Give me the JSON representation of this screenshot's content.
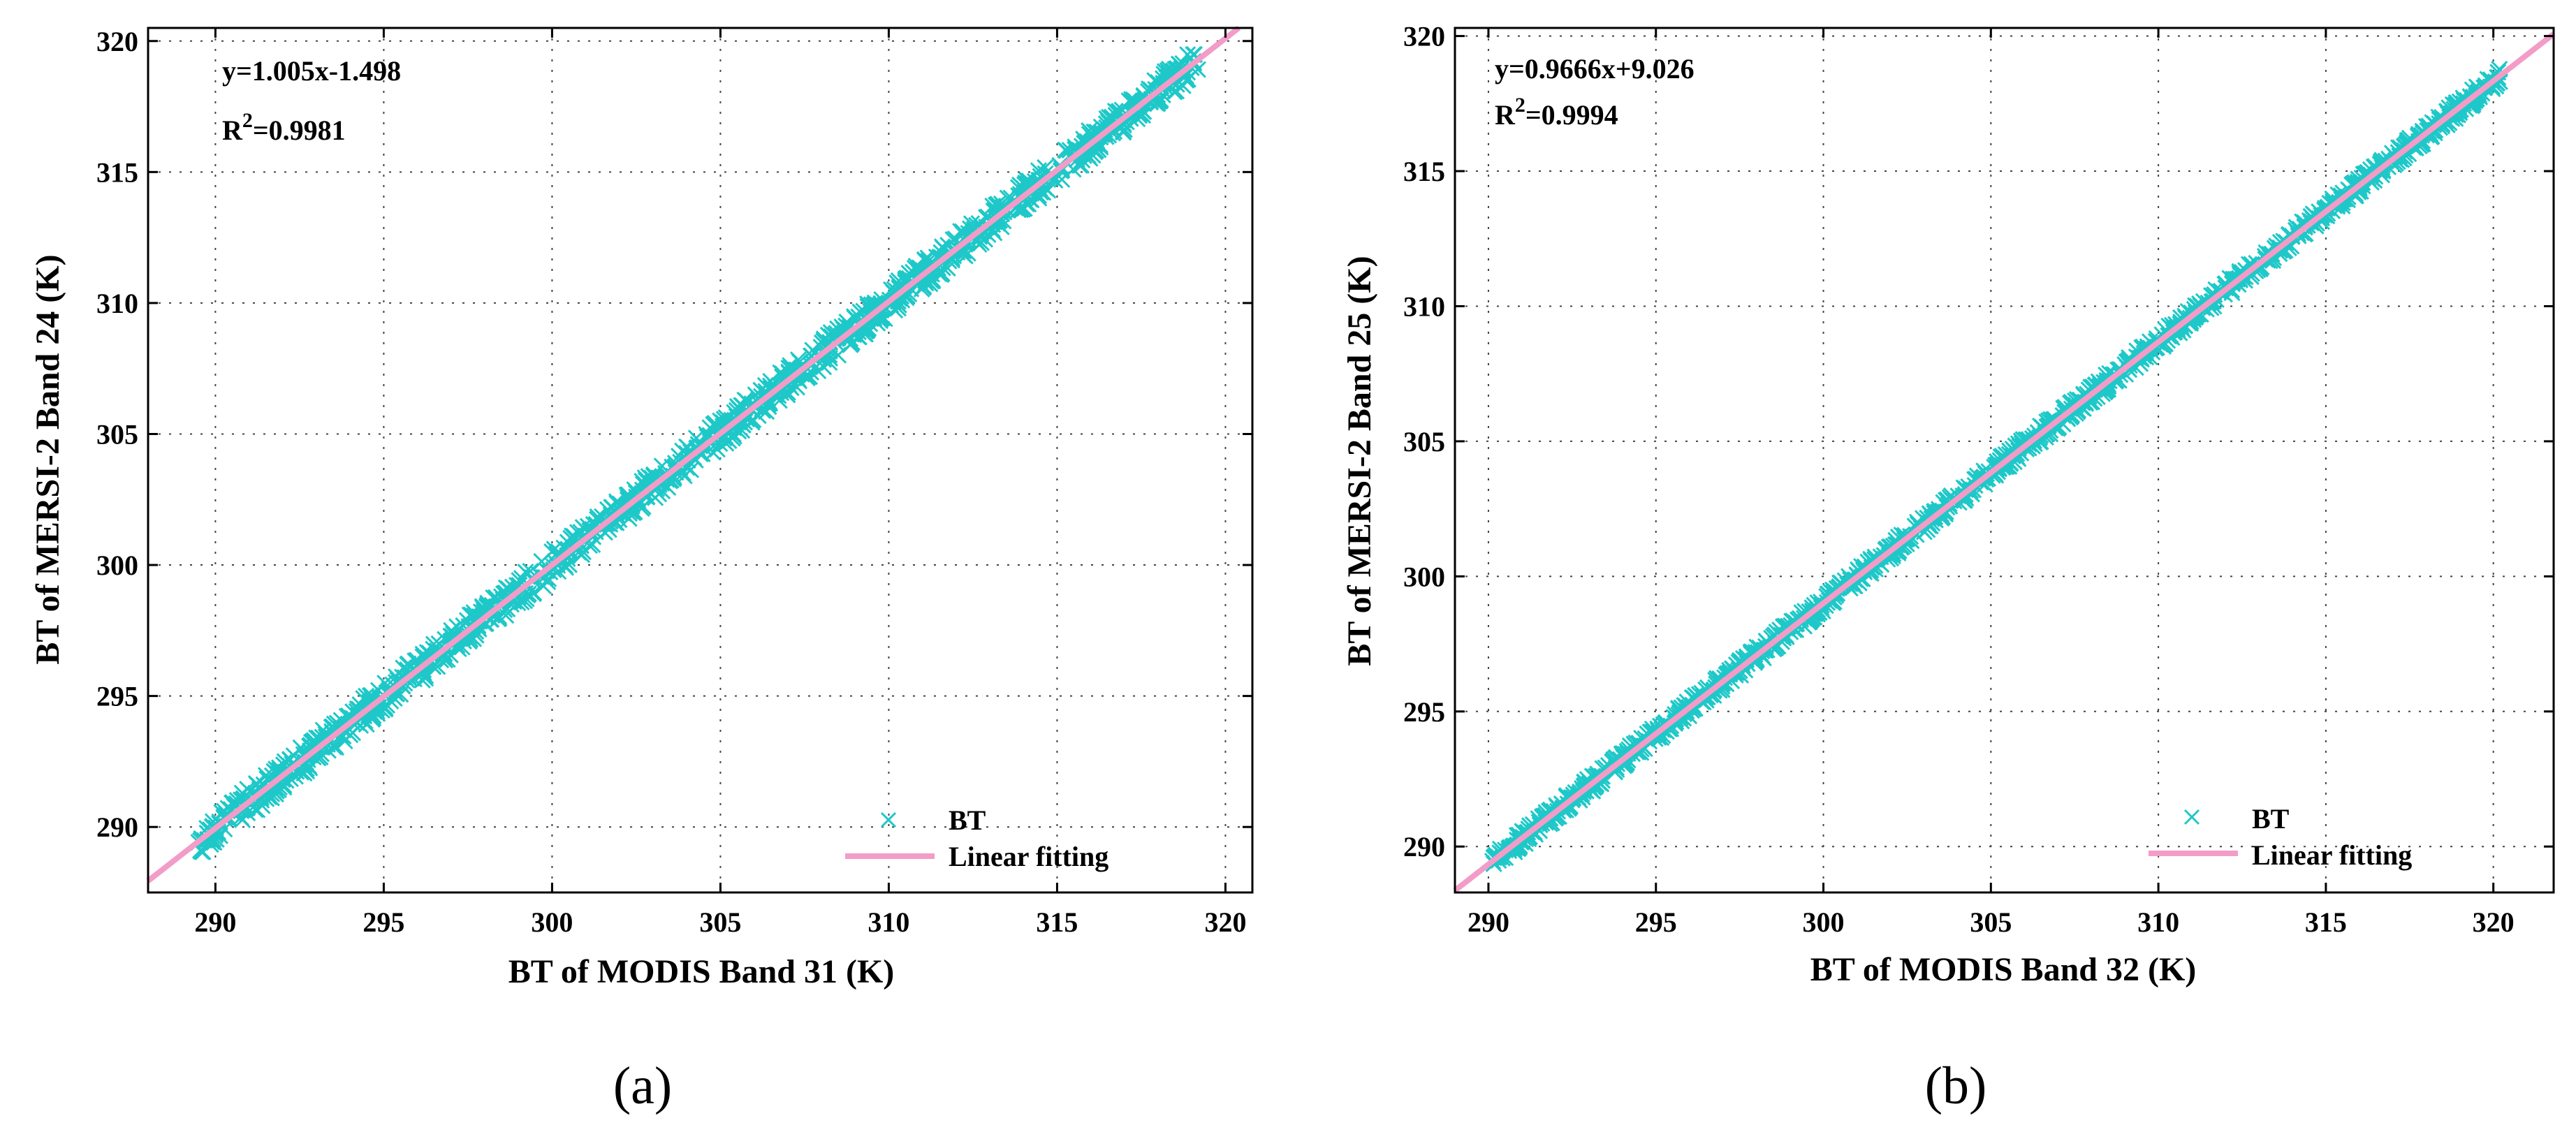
{
  "colors": {
    "scatter": "#1ec8c8",
    "fit": "#f39cc8"
  },
  "chart_data": [
    {
      "type": "scatter",
      "panel_label": "(a)",
      "xlabel": "BT of MODIS Band 31 (K)",
      "ylabel": "BT of MERSI-2 Band 24 (K)",
      "xlim": [
        288,
        320.8
      ],
      "ylim": [
        287.5,
        320.5
      ],
      "xticks": [
        290,
        295,
        300,
        305,
        310,
        315,
        320
      ],
      "yticks": [
        290,
        295,
        300,
        305,
        310,
        315,
        320
      ],
      "fit": {
        "slope": 1.005,
        "intercept": -1.498
      },
      "equation": "y=1.005x-1.498",
      "r2_prefix": "R",
      "r2_sup": "2",
      "r2_value": "=0.9981",
      "scatter_x_range": [
        289.5,
        319.2
      ],
      "spread": 0.55,
      "legend": [
        {
          "label": "BT",
          "marker": "x"
        },
        {
          "label": "Linear fitting",
          "marker": "line"
        }
      ],
      "legend_position": "bottom-right",
      "grid": true
    },
    {
      "type": "scatter",
      "panel_label": "(b)",
      "xlabel": "BT of MODIS Band 32 (K)",
      "ylabel": "BT of MERSI-2 Band 25 (K)",
      "xlim": [
        289,
        321.8
      ],
      "ylim": [
        288.3,
        320.3
      ],
      "xticks": [
        290,
        295,
        300,
        305,
        310,
        315,
        320
      ],
      "yticks": [
        290,
        295,
        300,
        305,
        310,
        315,
        320
      ],
      "fit": {
        "slope": 0.9666,
        "intercept": 9.026
      },
      "equation": "y=0.9666x+9.026",
      "r2_prefix": "R",
      "r2_sup": "2",
      "r2_value": "=0.9994",
      "scatter_x_range": [
        290.1,
        320.2
      ],
      "spread": 0.3,
      "legend": [
        {
          "label": "BT",
          "marker": "x"
        },
        {
          "label": "Linear fitting",
          "marker": "line"
        }
      ],
      "legend_position": "bottom-right",
      "grid": true
    }
  ]
}
